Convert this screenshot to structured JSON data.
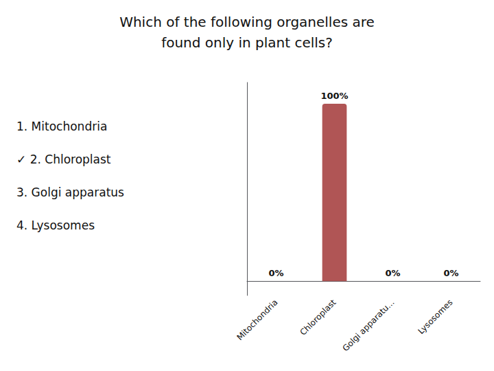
{
  "chart_data": {
    "type": "bar",
    "title": "Which of the following organelles are\nfound only in plant cells?",
    "categories": [
      "Mitochondria",
      "Chloroplast",
      "Golgi apparatu...",
      "Lysosomes"
    ],
    "values": [
      0,
      100,
      0,
      0
    ],
    "value_labels": [
      "0%",
      "100%",
      "0%",
      "0%"
    ],
    "data_labels": true,
    "color": "#b05555",
    "ylim": [
      -8,
      112
    ],
    "tick_labels": "x",
    "grid": false,
    "annotations": [
      "1. Mitochondria",
      "✓ 2. Chloroplast",
      "3. Golgi apparatus",
      "4. Lysosomes"
    ]
  }
}
